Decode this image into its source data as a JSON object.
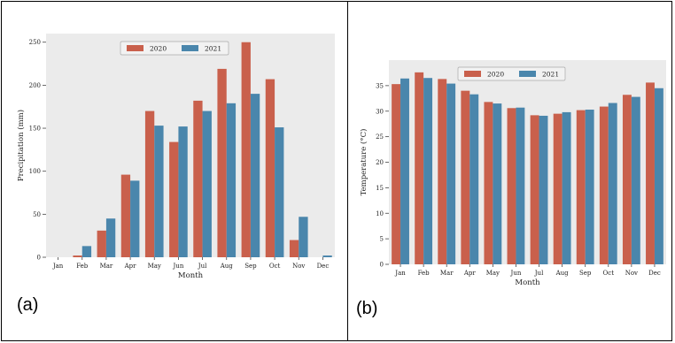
{
  "colors": {
    "series_2020": "#c9604c",
    "series_2021": "#4a86ac",
    "plot_bg": "#ebebeb"
  },
  "panels": {
    "a_label": "(a)",
    "b_label": "(b)"
  },
  "chart_data": [
    {
      "type": "bar",
      "title": "",
      "xlabel": "Month",
      "ylabel": "Precipitation (mm)",
      "ylim": [
        0,
        260
      ],
      "yticks": [
        0,
        50,
        100,
        150,
        200,
        250
      ],
      "grid": false,
      "legend_position": "top-center",
      "categories": [
        "Jan",
        "Feb",
        "Mar",
        "Apr",
        "May",
        "Jun",
        "Jul",
        "Aug",
        "Sep",
        "Oct",
        "Nov",
        "Dec"
      ],
      "series": [
        {
          "name": "2020",
          "values": [
            0,
            2,
            31,
            96,
            170,
            134,
            182,
            219,
            250,
            207,
            20,
            0
          ]
        },
        {
          "name": "2021",
          "values": [
            0,
            13,
            45,
            89,
            153,
            152,
            170,
            179,
            190,
            151,
            47,
            2
          ]
        }
      ]
    },
    {
      "type": "bar",
      "title": "",
      "xlabel": "Month",
      "ylabel": "Temperature (°C)",
      "ylim": [
        0,
        40
      ],
      "yticks": [
        0,
        5,
        10,
        15,
        20,
        25,
        30,
        35
      ],
      "grid": false,
      "legend_position": "top-center",
      "categories": [
        "Jan",
        "Feb",
        "Mar",
        "Apr",
        "May",
        "Jun",
        "Jul",
        "Aug",
        "Sep",
        "Oct",
        "Nov",
        "Dec"
      ],
      "series": [
        {
          "name": "2020",
          "values": [
            35.3,
            37.6,
            36.3,
            34.0,
            31.8,
            30.6,
            29.2,
            29.5,
            30.2,
            30.9,
            33.2,
            35.6
          ]
        },
        {
          "name": "2021",
          "values": [
            36.4,
            36.5,
            35.4,
            33.3,
            31.5,
            30.7,
            29.1,
            29.8,
            30.3,
            31.6,
            32.8,
            34.5
          ]
        }
      ]
    }
  ]
}
